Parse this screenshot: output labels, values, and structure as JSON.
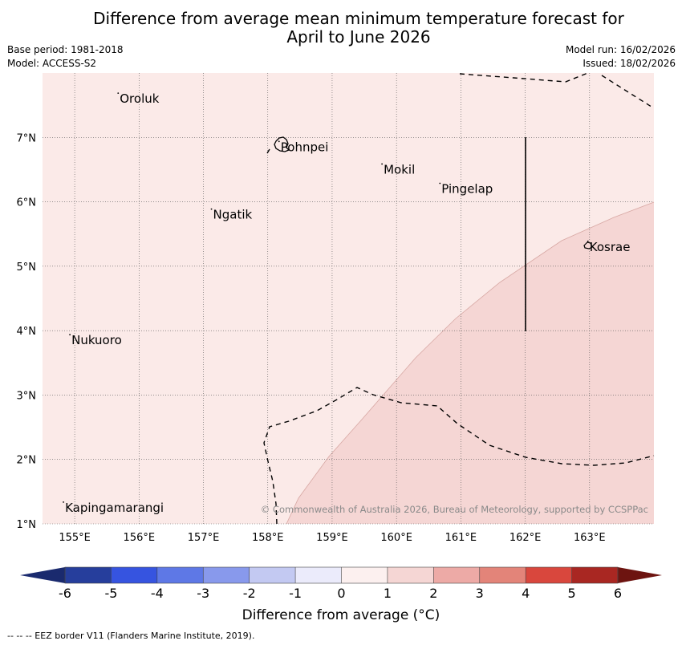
{
  "title_line1": "Difference from average mean minimum temperature forecast for",
  "title_line2": "April to June 2026",
  "meta_left": [
    "Base period: 1981-2018",
    "Model: ACCESS-S2"
  ],
  "meta_right": [
    "Model run: 16/02/2026",
    "Issued: 18/02/2026"
  ],
  "map": {
    "lon_range": [
      154.5,
      164.0
    ],
    "lat_range": [
      1.0,
      8.0
    ],
    "lon_ticks": [
      155,
      156,
      157,
      158,
      159,
      160,
      161,
      162,
      163
    ],
    "lat_ticks": [
      1,
      2,
      3,
      4,
      5,
      6,
      7
    ],
    "lon_tick_labels": [
      "155°E",
      "156°E",
      "157°E",
      "158°E",
      "159°E",
      "160°E",
      "161°E",
      "162°E",
      "163°E"
    ],
    "lat_tick_labels": [
      "1°N",
      "2°N",
      "3°N",
      "4°N",
      "5°N",
      "6°N",
      "7°N"
    ],
    "places": [
      {
        "name": "Oroluk",
        "lon": 155.7,
        "lat": 7.6
      },
      {
        "name": "Pohnpei",
        "lon": 158.2,
        "lat": 6.85
      },
      {
        "name": "Mokil",
        "lon": 159.8,
        "lat": 6.5
      },
      {
        "name": "Pingelap",
        "lon": 160.7,
        "lat": 6.2
      },
      {
        "name": "Ngatik",
        "lon": 157.15,
        "lat": 5.8
      },
      {
        "name": "Kosrae",
        "lon": 163.0,
        "lat": 5.3
      },
      {
        "name": "Nukuoro",
        "lon": 154.95,
        "lat": 3.85
      },
      {
        "name": "Kapingamarangi",
        "lon": 154.85,
        "lat": 1.25
      }
    ],
    "anomaly_classes": [
      {
        "range": "0 to 1",
        "color": "#fbeae8"
      },
      {
        "range": "1 to 2",
        "color": "#f5d6d4"
      }
    ],
    "copyright": "© Commonwealth of Australia 2026, Bureau of Meteorology, supported by CCSPPac"
  },
  "colorbar": {
    "ticks": [
      "-6",
      "-5",
      "-4",
      "-3",
      "-2",
      "-1",
      "0",
      "1",
      "2",
      "3",
      "4",
      "5",
      "6"
    ],
    "colors": [
      "#263e9c",
      "#3654e0",
      "#5e78e6",
      "#8899ec",
      "#c3c9f2",
      "#ebebfb",
      "#fcf0ef",
      "#f5d6d4",
      "#edaaa6",
      "#e38479",
      "#d9473d",
      "#a92722"
    ],
    "under_color": "#1a2a6e",
    "over_color": "#6d1410",
    "label": "Difference from average (°C)"
  },
  "footnote": "--  --  -- EEZ border V11 (Flanders Marine Institute, 2019)."
}
